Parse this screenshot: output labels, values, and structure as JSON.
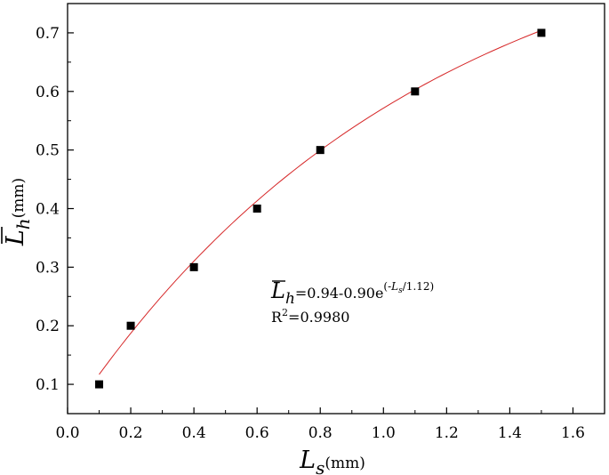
{
  "chart_data": {
    "type": "scatter",
    "xlabel": {
      "symbol": "L",
      "subscript": "s",
      "unit": "(mm)"
    },
    "ylabel": {
      "symbol": "L",
      "subscript": "h",
      "unit": "(mm)",
      "overline": true
    },
    "xlim": [
      0.0,
      1.7
    ],
    "ylim": [
      0.05,
      0.75
    ],
    "x_ticks": [
      0.0,
      0.2,
      0.4,
      0.6,
      0.8,
      1.0,
      1.2,
      1.4,
      1.6
    ],
    "x_tick_labels": [
      "0.0",
      "0.2",
      "0.4",
      "0.6",
      "0.8",
      "1.0",
      "1.2",
      "1.4",
      "1.6"
    ],
    "y_ticks": [
      0.1,
      0.2,
      0.3,
      0.4,
      0.5,
      0.6,
      0.7
    ],
    "y_tick_labels": [
      "0.1",
      "0.2",
      "0.3",
      "0.4",
      "0.5",
      "0.6",
      "0.7"
    ],
    "grid": false,
    "series": [
      {
        "type": "scatter",
        "marker": "square",
        "color": "#000000",
        "x": [
          0.1,
          0.2,
          0.4,
          0.6,
          0.8,
          1.1,
          1.5
        ],
        "y": [
          0.1,
          0.2,
          0.3,
          0.4,
          0.5,
          0.6,
          0.7
        ]
      },
      {
        "type": "line",
        "color": "#d62728",
        "fit": {
          "a": 0.94,
          "b": 0.9,
          "c": 1.12,
          "x_range": [
            0.1,
            1.5
          ]
        }
      }
    ],
    "annotation": {
      "lhs_symbol": "L",
      "lhs_subscript": "h",
      "equation_body": "=0.94-0.90e",
      "exponent_open": "(-",
      "exponent_symbol": "L",
      "exponent_subscript": "s",
      "exponent_close": "/1.12)",
      "r2_label": "R",
      "r2_sup": "2",
      "r2_value": "=0.9980"
    }
  }
}
